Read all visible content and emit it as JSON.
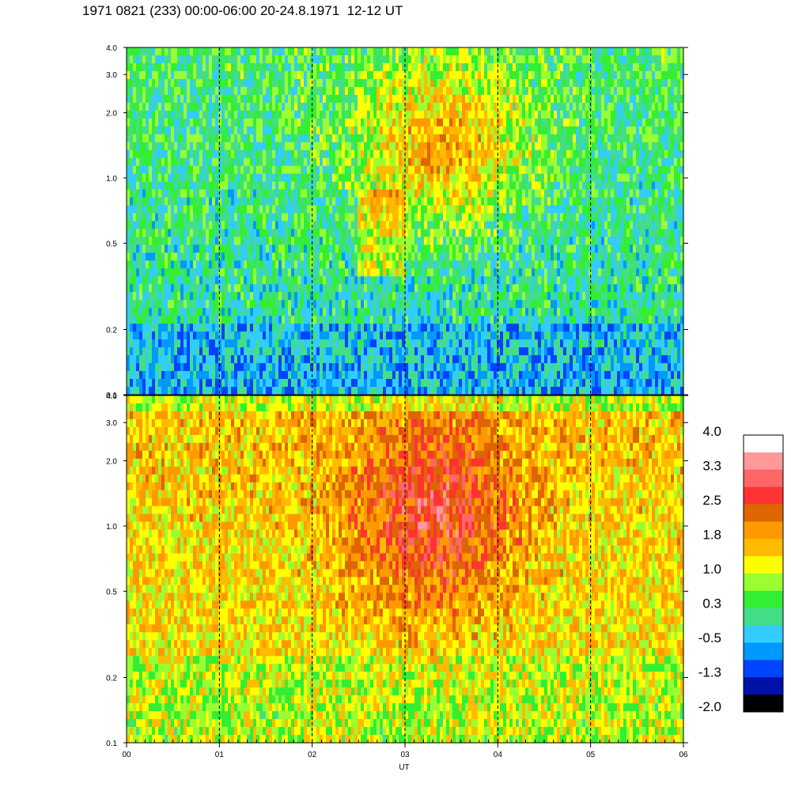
{
  "title": "1971 0821 (233) 00:00-06:00 20-24.8.1971  12-12 UT",
  "chart_data": {
    "type": "heatmap",
    "xlabel": "UT",
    "x_ticks": [
      "00",
      "01",
      "02",
      "03",
      "04",
      "05",
      "06"
    ],
    "xlim": [
      0,
      6
    ],
    "panels": [
      {
        "y_ticks": [
          "4.0",
          "3.0",
          "2.0",
          "1.0",
          "0.5",
          "0.2",
          "0.1"
        ],
        "y_tick_values": [
          4.0,
          3.0,
          2.0,
          1.0,
          0.5,
          0.2,
          0.1
        ],
        "ylim": [
          0.1,
          4.0
        ],
        "y_scale": "log",
        "description_level": "low"
      },
      {
        "y_ticks": [
          "4.0",
          "3.0",
          "2.0",
          "1.0",
          "0.5",
          "0.2",
          "0.1"
        ],
        "y_tick_values": [
          4.0,
          3.0,
          2.0,
          1.0,
          0.5,
          0.2,
          0.1
        ],
        "ylim": [
          0.1,
          4.0
        ],
        "y_scale": "log",
        "description_level": "high"
      }
    ],
    "vertical_dashed_lines_at": [
      1,
      2,
      3,
      4,
      5
    ],
    "colorbar": {
      "labels": [
        "4.0",
        "3.3",
        "2.5",
        "1.8",
        "1.0",
        "0.3",
        "-0.5",
        "-1.3",
        "-2.0"
      ],
      "label_values": [
        4.0,
        3.3,
        2.5,
        1.8,
        1.0,
        0.3,
        -0.5,
        -1.3,
        -2.0
      ],
      "colors_top_to_bottom": [
        "#ffffff",
        "#ff9999",
        "#ff6666",
        "#ff3333",
        "#dd6600",
        "#ff9900",
        "#ffbb00",
        "#ffff00",
        "#99ff33",
        "#33ee33",
        "#44dd88",
        "#33ccff",
        "#0099ff",
        "#0044ff",
        "#0011aa",
        "#000000"
      ]
    }
  }
}
